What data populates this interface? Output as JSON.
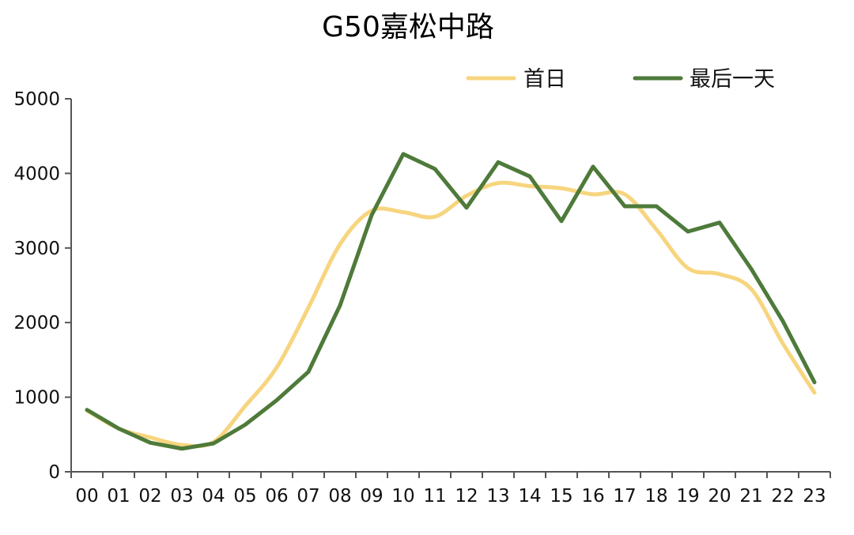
{
  "chart_data": {
    "type": "line",
    "title": "G50嘉松中路",
    "categories": [
      "00",
      "01",
      "02",
      "03",
      "04",
      "05",
      "06",
      "07",
      "08",
      "09",
      "10",
      "11",
      "12",
      "13",
      "14",
      "15",
      "16",
      "17",
      "18",
      "19",
      "20",
      "21",
      "22",
      "23"
    ],
    "series": [
      {
        "name": "首日",
        "color": "#F7D57F",
        "smooth": true,
        "values": [
          820,
          580,
          460,
          360,
          400,
          880,
          1400,
          2200,
          3050,
          3500,
          3480,
          3420,
          3700,
          3870,
          3830,
          3800,
          3720,
          3720,
          3250,
          2730,
          2650,
          2450,
          1720,
          1060
        ]
      },
      {
        "name": "最后一天",
        "color": "#4E7A3A",
        "smooth": false,
        "values": [
          830,
          580,
          390,
          310,
          380,
          630,
          960,
          1340,
          2230,
          3440,
          4260,
          4060,
          3540,
          4150,
          3960,
          3360,
          4090,
          3560,
          3560,
          3220,
          3340,
          2720,
          2020,
          1200
        ]
      }
    ],
    "ylim": [
      0,
      5000
    ],
    "yticks": [
      "0",
      "1000",
      "2000",
      "3000",
      "4000",
      "5000"
    ],
    "xlabel": "",
    "ylabel": "",
    "grid": false,
    "legend_position": "top-right"
  }
}
